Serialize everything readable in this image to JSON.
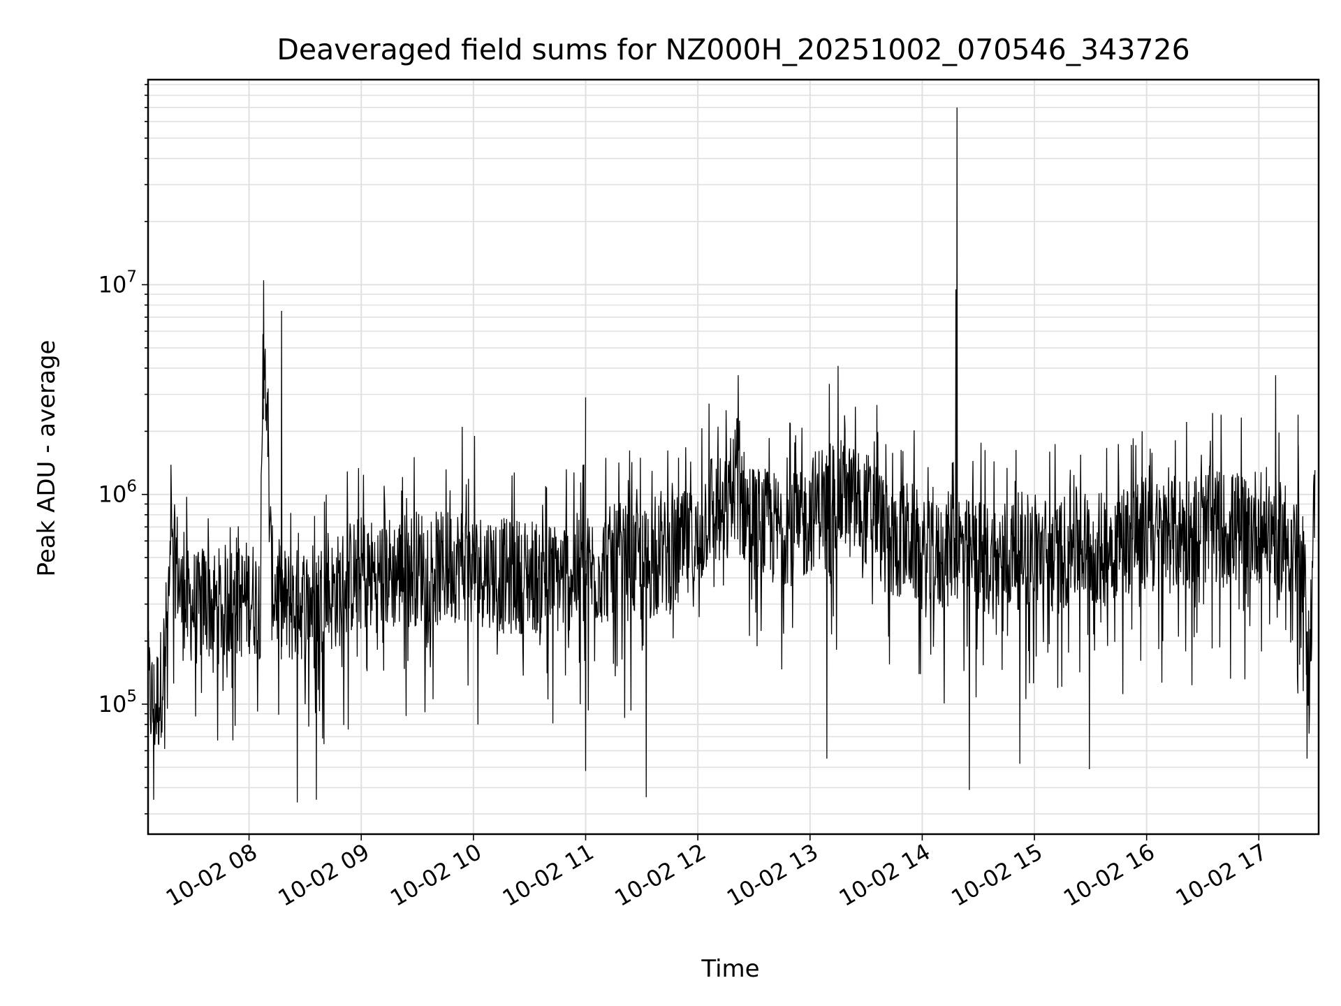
{
  "chart_data": {
    "type": "line",
    "title": "Deaveraged field sums for NZ000H_20251002_070546_343726",
    "xlabel": "Time",
    "ylabel": "Peak ADU - average",
    "y_scale": "log",
    "grid": true,
    "line_color": "#000000",
    "grid_color": "#e0e0e0",
    "xlim": [
      "2025-10-02 07:06",
      "2025-10-02 17:32"
    ],
    "ylim": [
      24000,
      95000000
    ],
    "x_ticks": [
      {
        "value": "2025-10-02 08:00",
        "label": "10-02 08"
      },
      {
        "value": "2025-10-02 09:00",
        "label": "10-02 09"
      },
      {
        "value": "2025-10-02 10:00",
        "label": "10-02 10"
      },
      {
        "value": "2025-10-02 11:00",
        "label": "10-02 11"
      },
      {
        "value": "2025-10-02 12:00",
        "label": "10-02 12"
      },
      {
        "value": "2025-10-02 13:00",
        "label": "10-02 13"
      },
      {
        "value": "2025-10-02 14:00",
        "label": "10-02 14"
      },
      {
        "value": "2025-10-02 15:00",
        "label": "10-02 15"
      },
      {
        "value": "2025-10-02 16:00",
        "label": "10-02 16"
      },
      {
        "value": "2025-10-02 17:00",
        "label": "10-02 17"
      }
    ],
    "y_ticks": [
      {
        "value": 100000,
        "base": "10",
        "exp": "5"
      },
      {
        "value": 1000000,
        "base": "10",
        "exp": "6"
      },
      {
        "value": 10000000,
        "base": "10",
        "exp": "7"
      }
    ],
    "series": [
      {
        "name": "Peak ADU - average",
        "x_hours": [
          7.1,
          7.15,
          7.2,
          7.25,
          7.3,
          7.35,
          7.4,
          7.45,
          7.5,
          7.55,
          7.6,
          7.7,
          7.8,
          7.9,
          8.0,
          8.1,
          8.14,
          8.2,
          8.3,
          8.4,
          8.5,
          8.6,
          8.7,
          8.8,
          8.9,
          9.0,
          9.1,
          9.2,
          9.3,
          9.4,
          9.5,
          9.6,
          9.7,
          9.8,
          9.9,
          10.0,
          10.1,
          10.2,
          10.3,
          10.4,
          10.5,
          10.6,
          10.7,
          10.8,
          10.9,
          11.0,
          11.1,
          11.2,
          11.3,
          11.4,
          11.5,
          11.6,
          11.7,
          11.8,
          11.9,
          12.0,
          12.1,
          12.2,
          12.3,
          12.37,
          12.4,
          12.5,
          12.6,
          12.7,
          12.8,
          12.9,
          13.0,
          13.1,
          13.2,
          13.3,
          13.4,
          13.5,
          13.6,
          13.7,
          13.8,
          13.9,
          14.0,
          14.1,
          14.2,
          14.3,
          14.4,
          14.5,
          14.6,
          14.7,
          14.8,
          14.9,
          15.0,
          15.1,
          15.2,
          15.3,
          15.4,
          15.5,
          15.6,
          15.7,
          15.8,
          15.9,
          16.0,
          16.1,
          16.2,
          16.3,
          16.4,
          16.5,
          16.6,
          16.7,
          16.8,
          16.9,
          17.0,
          17.1,
          17.2,
          17.3,
          17.35,
          17.4,
          17.45,
          17.5
        ],
        "values": [
          120000,
          95000,
          110000,
          180000,
          400000,
          500000,
          310000,
          290000,
          300000,
          280000,
          320000,
          290000,
          310000,
          300000,
          330000,
          310000,
          6000000,
          380000,
          300000,
          290000,
          310000,
          330000,
          320000,
          350000,
          400000,
          420000,
          410000,
          430000,
          420000,
          440000,
          450000,
          470000,
          430000,
          460000,
          480000,
          420000,
          450000,
          430000,
          400000,
          410000,
          420000,
          400000,
          390000,
          410000,
          430000,
          420000,
          440000,
          460000,
          480000,
          470000,
          450000,
          480000,
          500000,
          520000,
          550000,
          560000,
          900000,
          800000,
          850000,
          1800000,
          900000,
          750000,
          700000,
          680000,
          720000,
          650000,
          800000,
          950000,
          1000000,
          950000,
          900000,
          850000,
          800000,
          550000,
          600000,
          620000,
          500000,
          480000,
          520000,
          600000,
          500000,
          520000,
          480000,
          500000,
          520000,
          550000,
          560000,
          520000,
          500000,
          550000,
          580000,
          560000,
          540000,
          600000,
          620000,
          640000,
          650000,
          620000,
          640000,
          660000,
          680000,
          700000,
          720000,
          680000,
          690000,
          700000,
          720000,
          700000,
          650000,
          600000,
          500000,
          400000,
          150000,
          1000000
        ]
      }
    ],
    "spikes": [
      {
        "x_hour": 8.13,
        "value": 10500000
      },
      {
        "x_hour": 8.17,
        "value": 3200000
      },
      {
        "x_hour": 8.29,
        "value": 7500000
      },
      {
        "x_hour": 9.9,
        "value": 2100000
      },
      {
        "x_hour": 10.01,
        "value": 1900000
      },
      {
        "x_hour": 11.0,
        "value": 2900000
      },
      {
        "x_hour": 12.36,
        "value": 3700000
      },
      {
        "x_hour": 13.25,
        "value": 4100000
      },
      {
        "x_hour": 14.3,
        "value": 9500000
      },
      {
        "x_hour": 14.31,
        "value": 70000000
      },
      {
        "x_hour": 15.96,
        "value": 2000000
      },
      {
        "x_hour": 17.15,
        "value": 3700000
      },
      {
        "x_hour": 17.35,
        "value": 2400000
      }
    ],
    "dips": [
      {
        "x_hour": 7.15,
        "value": 35000
      },
      {
        "x_hour": 8.43,
        "value": 34000
      },
      {
        "x_hour": 8.6,
        "value": 35000
      },
      {
        "x_hour": 11.0,
        "value": 48000
      },
      {
        "x_hour": 11.54,
        "value": 36000
      },
      {
        "x_hour": 13.15,
        "value": 55000
      },
      {
        "x_hour": 14.42,
        "value": 39000
      },
      {
        "x_hour": 14.87,
        "value": 52000
      },
      {
        "x_hour": 15.49,
        "value": 49000
      },
      {
        "x_hour": 17.43,
        "value": 55000
      }
    ]
  }
}
